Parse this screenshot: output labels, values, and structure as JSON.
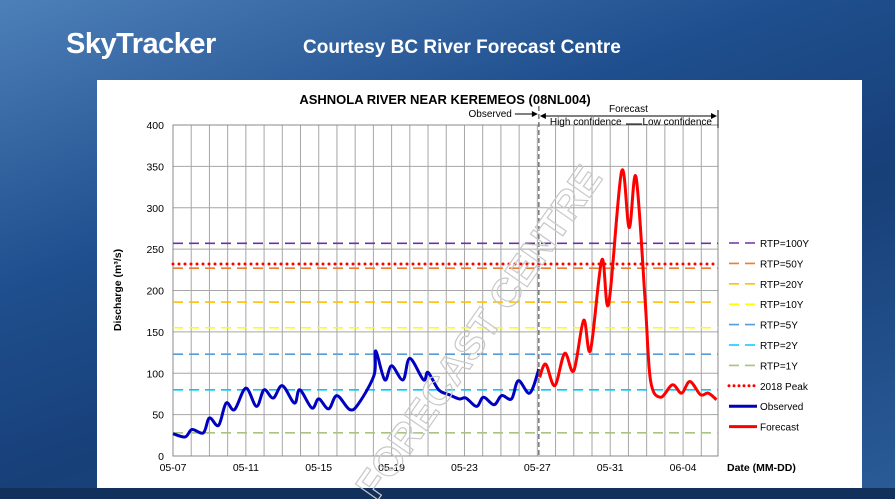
{
  "header": {
    "brand": "SkyTracker",
    "courtesy": "Courtesy BC River Forecast Centre"
  },
  "watermark": "FORECAST CENTRE",
  "chart_data": {
    "type": "line",
    "title": "ASHNOLA RIVER NEAR KEREMEOS (08NL004)",
    "xlabel": "Date (MM-DD)",
    "ylabel": "Discharge (m³/s)",
    "ylim": [
      0,
      400
    ],
    "yticks": [
      "0",
      "50",
      "100",
      "150",
      "200",
      "250",
      "300",
      "350",
      "400"
    ],
    "xlim": [
      "05-07 00:00",
      "06-05 22:00"
    ],
    "xticks": [
      "05-07",
      "05-11",
      "05-15",
      "05-19",
      "05-23",
      "05-27",
      "05-31",
      "06-04"
    ],
    "grid": true,
    "legend_position": "right",
    "annotations": {
      "divider_date": "05-27 02:00",
      "observed": "Observed",
      "forecast": "Forecast",
      "high_confidence": "High confidence",
      "low_confidence": "Low confidence"
    },
    "thresholds": [
      {
        "name": "RTP=100Y",
        "value": 257,
        "color": "#7030a0",
        "style": "dash"
      },
      {
        "name": "RTP=50Y",
        "value": 227,
        "color": "#ed7d31",
        "style": "dash"
      },
      {
        "name": "RTP=20Y",
        "value": 186,
        "color": "#ffc000",
        "style": "dash"
      },
      {
        "name": "RTP=10Y",
        "value": 155,
        "color": "#ffff00",
        "style": "dash"
      },
      {
        "name": "RTP=5Y",
        "value": 123,
        "color": "#5b9bd5",
        "style": "dash"
      },
      {
        "name": "RTP=2Y",
        "value": 80,
        "color": "#00c8ff",
        "style": "dash"
      },
      {
        "name": "RTP=1Y",
        "value": 28,
        "color": "#a9c47f",
        "style": "dash"
      },
      {
        "name": "2018 Peak",
        "value": 232,
        "color": "#ff0000",
        "style": "dot"
      }
    ],
    "series": [
      {
        "name": "Observed",
        "color": "#0000c0",
        "points": [
          [
            "05-07 00:00",
            27
          ],
          [
            "05-07 16:00",
            23
          ],
          [
            "05-08 01:00",
            32
          ],
          [
            "05-08 16:00",
            28
          ],
          [
            "05-09 00:00",
            46
          ],
          [
            "05-09 12:00",
            37
          ],
          [
            "05-09 22:00",
            64
          ],
          [
            "05-10 09:00",
            56
          ],
          [
            "05-11 00:00",
            82
          ],
          [
            "05-11 14:00",
            60
          ],
          [
            "05-12 00:00",
            80
          ],
          [
            "05-12 12:00",
            70
          ],
          [
            "05-13 00:00",
            85
          ],
          [
            "05-13 16:00",
            64
          ],
          [
            "05-13 23:00",
            80
          ],
          [
            "05-14 15:00",
            58
          ],
          [
            "05-15 00:00",
            69
          ],
          [
            "05-15 13:00",
            57
          ],
          [
            "05-16 00:00",
            73
          ],
          [
            "05-16 17:00",
            56
          ],
          [
            "05-17 05:00",
            64
          ],
          [
            "05-18 01:00",
            98
          ],
          [
            "05-18 03:00",
            127
          ],
          [
            "05-18 15:00",
            92
          ],
          [
            "05-19 00:00",
            109
          ],
          [
            "05-19 15:00",
            92
          ],
          [
            "05-20 00:00",
            118
          ],
          [
            "05-20 18:00",
            92
          ],
          [
            "05-21 00:00",
            101
          ],
          [
            "05-21 14:00",
            80
          ],
          [
            "05-22 04:00",
            74
          ],
          [
            "05-22 17:00",
            69
          ],
          [
            "05-23 02:00",
            70
          ],
          [
            "05-23 16:00",
            60
          ],
          [
            "05-24 01:00",
            71
          ],
          [
            "05-24 15:00",
            62
          ],
          [
            "05-25 01:00",
            73
          ],
          [
            "05-25 14:00",
            69
          ],
          [
            "05-25 23:00",
            91
          ],
          [
            "05-26 14:00",
            76
          ],
          [
            "05-27 02:00",
            105
          ]
        ]
      },
      {
        "name": "Forecast",
        "color": "#ff0000",
        "points": [
          [
            "05-27 03:00",
            95
          ],
          [
            "05-27 11:00",
            111
          ],
          [
            "05-27 23:00",
            85
          ],
          [
            "05-28 12:00",
            124
          ],
          [
            "05-29 00:00",
            103
          ],
          [
            "05-29 13:00",
            164
          ],
          [
            "05-29 22:00",
            128
          ],
          [
            "05-30 13:00",
            237
          ],
          [
            "05-30 22:00",
            184
          ],
          [
            "05-31 15:00",
            344
          ],
          [
            "06-01 01:00",
            276
          ],
          [
            "06-01 10:00",
            337
          ],
          [
            "06-01 22:00",
            188
          ],
          [
            "06-02 05:00",
            92
          ],
          [
            "06-02 18:00",
            71
          ],
          [
            "06-03 10:00",
            86
          ],
          [
            "06-03 22:00",
            76
          ],
          [
            "06-04 09:00",
            90
          ],
          [
            "06-04 23:00",
            74
          ],
          [
            "06-05 09:00",
            76
          ],
          [
            "06-05 20:00",
            68
          ]
        ]
      }
    ]
  }
}
